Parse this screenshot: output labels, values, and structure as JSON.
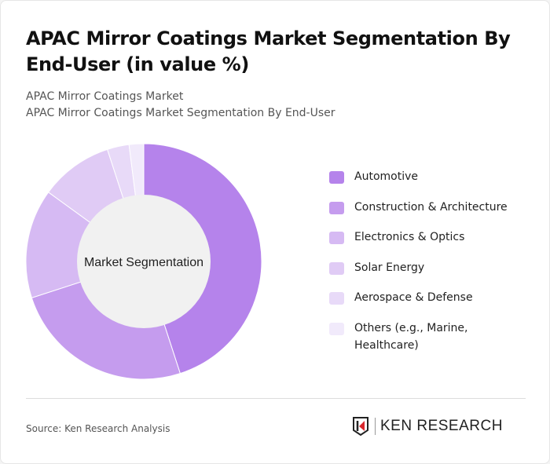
{
  "title": "APAC Mirror Coatings Market Segmentation By End-User (in value %)",
  "subtitle1": "APAC Mirror Coatings Market",
  "subtitle2": "APAC Mirror Coatings Market Segmentation By End-User",
  "source": "Source: Ken Research Analysis",
  "logo_text": "KEN RESEARCH",
  "chart_data": {
    "type": "pie",
    "variant": "donut",
    "center_label": "Market Segmentation",
    "legend_position": "right",
    "categories": [
      "Automotive",
      "Construction & Architecture",
      "Electronics & Optics",
      "Solar Energy",
      "Aerospace & Defense",
      "Others (e.g., Marine, Healthcare)"
    ],
    "values": [
      45,
      25,
      15,
      10,
      3,
      2
    ],
    "colors": [
      "#b583eb",
      "#c59cee",
      "#d6baf3",
      "#e0cbf5",
      "#e8daf8",
      "#f1eafb"
    ]
  }
}
